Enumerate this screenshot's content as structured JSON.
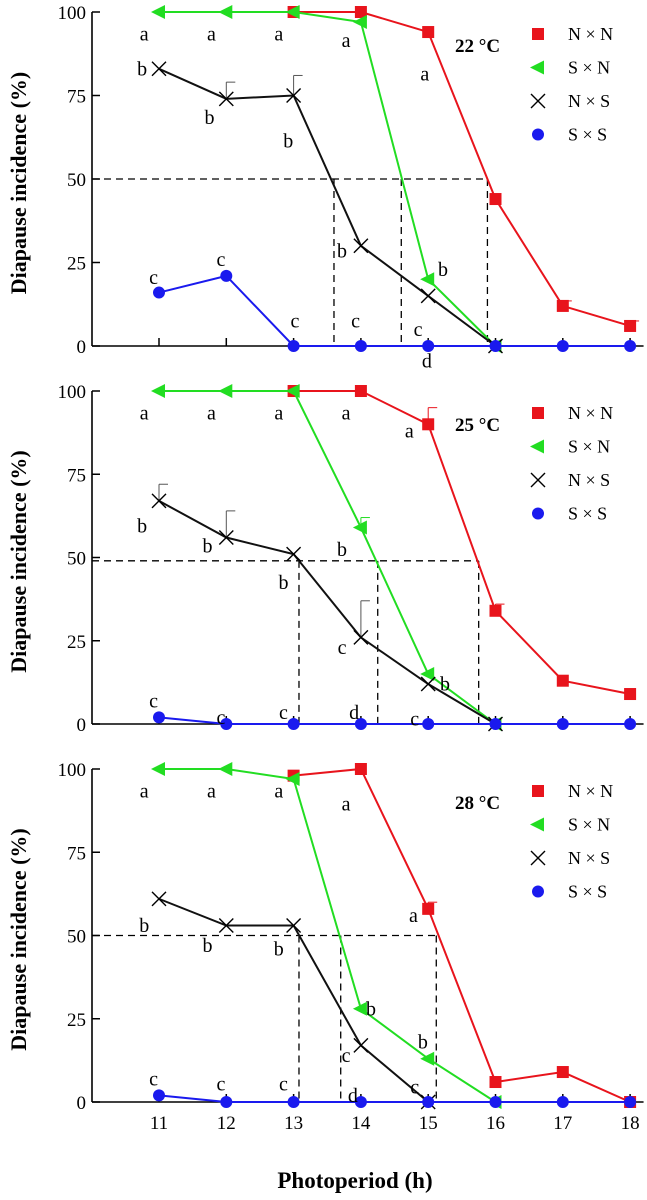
{
  "figure": {
    "xlabel": "Photoperiod (h)"
  },
  "chart_data": [
    {
      "type": "line",
      "title": "22 °C",
      "ylabel": "Diapause  incidence (%)",
      "xlabel": "Photoperiod (h)",
      "x": [
        11,
        12,
        13,
        14,
        15,
        16,
        17,
        18
      ],
      "xlim": [
        10,
        18.2
      ],
      "ylim": [
        0,
        100
      ],
      "yticks": [
        0,
        25,
        50,
        75,
        100
      ],
      "series": [
        {
          "name": "N × N",
          "color": "#e8141c",
          "marker": "square",
          "x": [
            13,
            14,
            15,
            16,
            17,
            18
          ],
          "values": [
            100,
            100,
            94,
            44,
            12,
            6
          ],
          "err": [
            0,
            0,
            0,
            0,
            1.5,
            1.5
          ]
        },
        {
          "name": "S × N",
          "color": "#22dd22",
          "marker": "triangle-left",
          "x": [
            11,
            12,
            13,
            14,
            15,
            16
          ],
          "values": [
            100,
            100,
            100,
            97,
            20,
            0
          ],
          "err": [
            0,
            0,
            0,
            0,
            0,
            0
          ]
        },
        {
          "name": "N × S",
          "color": "#000000",
          "marker": "x",
          "x": [
            11,
            12,
            13,
            14,
            15,
            16
          ],
          "values": [
            83,
            74,
            75,
            30,
            15,
            0
          ],
          "err": [
            0,
            5,
            6,
            0,
            0,
            0
          ]
        },
        {
          "name": "S × S",
          "color": "#1a1aee",
          "marker": "circle",
          "x": [
            11,
            12,
            13,
            14,
            15,
            16,
            17,
            18
          ],
          "values": [
            16,
            21,
            0,
            0,
            0,
            0,
            0,
            0
          ],
          "err": [
            0,
            0,
            0,
            0,
            0,
            0,
            0,
            0
          ]
        }
      ],
      "ref_level": 50,
      "ref_x": [
        13.6,
        14.6,
        15.88
      ],
      "letters": [
        {
          "text": "a",
          "x": 10.78,
          "y": 91.5
        },
        {
          "text": "a",
          "x": 11.78,
          "y": 91.5
        },
        {
          "text": "a",
          "x": 12.78,
          "y": 91.5
        },
        {
          "text": "a",
          "x": 13.78,
          "y": 89.5
        },
        {
          "text": "a",
          "x": 14.95,
          "y": 79.5
        },
        {
          "text": "b",
          "x": 10.75,
          "y": 81
        },
        {
          "text": "b",
          "x": 11.75,
          "y": 66.5
        },
        {
          "text": "b",
          "x": 12.92,
          "y": 59.5
        },
        {
          "text": "b",
          "x": 13.72,
          "y": 26.5
        },
        {
          "text": "b",
          "x": 15.22,
          "y": 21
        },
        {
          "text": "c",
          "x": 10.92,
          "y": 18.5
        },
        {
          "text": "c",
          "x": 11.92,
          "y": 24
        },
        {
          "text": "c",
          "x": 13.02,
          "y": 5.5
        },
        {
          "text": "c",
          "x": 13.92,
          "y": 5.5
        },
        {
          "text": "c",
          "x": 14.85,
          "y": 3
        },
        {
          "text": "d",
          "x": 14.98,
          "y": -6.5
        }
      ]
    },
    {
      "type": "line",
      "title": "25 °C",
      "ylabel": "Diapause  incidence (%)",
      "xlabel": "Photoperiod (h)",
      "x": [
        11,
        12,
        13,
        14,
        15,
        16,
        17,
        18
      ],
      "xlim": [
        10,
        18.2
      ],
      "ylim": [
        0,
        100
      ],
      "yticks": [
        0,
        25,
        50,
        75,
        100
      ],
      "series": [
        {
          "name": "N × N",
          "color": "#e8141c",
          "marker": "square",
          "x": [
            13,
            14,
            15,
            16,
            17,
            18
          ],
          "values": [
            100,
            100,
            90,
            34,
            13,
            9
          ],
          "err": [
            0,
            0,
            5,
            2,
            0,
            0
          ]
        },
        {
          "name": "S × N",
          "color": "#22dd22",
          "marker": "triangle-left",
          "x": [
            11,
            12,
            13,
            14,
            15,
            16
          ],
          "values": [
            100,
            100,
            100,
            59,
            15,
            0
          ],
          "err": [
            0,
            0,
            0,
            3,
            0,
            0
          ]
        },
        {
          "name": "N × S",
          "color": "#000000",
          "marker": "x",
          "x": [
            11,
            12,
            13,
            14,
            15,
            16
          ],
          "values": [
            67,
            56,
            51,
            26,
            12,
            0
          ],
          "err": [
            5,
            8,
            0,
            11,
            0,
            0
          ]
        },
        {
          "name": "S × S",
          "color": "#1a1aee",
          "marker": "circle",
          "x": [
            11,
            12,
            13,
            14,
            15,
            16,
            17,
            18
          ],
          "values": [
            2,
            0,
            0,
            0,
            0,
            0,
            0,
            0
          ],
          "err": [
            0,
            0,
            0,
            0,
            0,
            0,
            0,
            0
          ]
        }
      ],
      "ref_level": 49,
      "ref_x": [
        13.08,
        14.25,
        15.75
      ],
      "letters": [
        {
          "text": "a",
          "x": 10.78,
          "y": 91.5
        },
        {
          "text": "a",
          "x": 11.78,
          "y": 91.5
        },
        {
          "text": "a",
          "x": 12.78,
          "y": 91.5
        },
        {
          "text": "a",
          "x": 13.78,
          "y": 91.5
        },
        {
          "text": "a",
          "x": 14.72,
          "y": 86
        },
        {
          "text": "b",
          "x": 10.75,
          "y": 57.5
        },
        {
          "text": "b",
          "x": 11.72,
          "y": 51.5
        },
        {
          "text": "b",
          "x": 12.85,
          "y": 40.5
        },
        {
          "text": "b",
          "x": 13.72,
          "y": 50.5
        },
        {
          "text": "b",
          "x": 15.25,
          "y": 10
        },
        {
          "text": "c",
          "x": 10.92,
          "y": 5
        },
        {
          "text": "c",
          "x": 11.92,
          "y": 0
        },
        {
          "text": "c",
          "x": 12.85,
          "y": 1.5
        },
        {
          "text": "c",
          "x": 13.72,
          "y": 21
        },
        {
          "text": "c",
          "x": 14.8,
          "y": -0.5
        },
        {
          "text": "d",
          "x": 13.9,
          "y": 1.5
        }
      ]
    },
    {
      "type": "line",
      "title": "28 °C",
      "ylabel": "Diapause  incidence (%)",
      "xlabel": "Photoperiod (h)",
      "x": [
        11,
        12,
        13,
        14,
        15,
        16,
        17,
        18
      ],
      "xlim": [
        10,
        18.2
      ],
      "ylim": [
        0,
        100
      ],
      "yticks": [
        0,
        25,
        50,
        75,
        100
      ],
      "series": [
        {
          "name": "N × N",
          "color": "#e8141c",
          "marker": "square",
          "x": [
            13,
            14,
            15,
            16,
            17,
            18
          ],
          "values": [
            98,
            100,
            58,
            6,
            9,
            0
          ],
          "err": [
            0,
            0,
            2,
            0,
            0,
            0
          ]
        },
        {
          "name": "S × N",
          "color": "#22dd22",
          "marker": "triangle-left",
          "x": [
            11,
            12,
            13,
            14,
            15,
            16
          ],
          "values": [
            100,
            100,
            97,
            28,
            13,
            0
          ],
          "err": [
            0,
            0,
            0,
            0,
            0,
            0
          ]
        },
        {
          "name": "N × S",
          "color": "#000000",
          "marker": "x",
          "x": [
            11,
            12,
            13,
            14,
            15
          ],
          "values": [
            61,
            53,
            53,
            17,
            0
          ],
          "err": [
            0,
            0,
            0,
            0,
            0
          ]
        },
        {
          "name": "S × S",
          "color": "#1a1aee",
          "marker": "circle",
          "x": [
            11,
            12,
            13,
            14,
            15,
            16,
            17,
            18
          ],
          "values": [
            2,
            0,
            0,
            0,
            0,
            0,
            0,
            0
          ],
          "err": [
            0,
            0,
            0,
            0,
            0,
            0,
            0,
            0
          ]
        }
      ],
      "ref_level": 50,
      "ref_x": [
        13.08,
        13.7,
        15.12
      ],
      "letters": [
        {
          "text": "a",
          "x": 10.78,
          "y": 91.5
        },
        {
          "text": "a",
          "x": 11.78,
          "y": 91.5
        },
        {
          "text": "a",
          "x": 12.78,
          "y": 91.5
        },
        {
          "text": "a",
          "x": 13.78,
          "y": 87.5
        },
        {
          "text": "a",
          "x": 14.78,
          "y": 54
        },
        {
          "text": "b",
          "x": 10.78,
          "y": 51
        },
        {
          "text": "b",
          "x": 11.72,
          "y": 45
        },
        {
          "text": "b",
          "x": 12.78,
          "y": 44
        },
        {
          "text": "b",
          "x": 14.15,
          "y": 26
        },
        {
          "text": "b",
          "x": 14.92,
          "y": 16
        },
        {
          "text": "c",
          "x": 10.92,
          "y": 5
        },
        {
          "text": "c",
          "x": 11.92,
          "y": 3.5
        },
        {
          "text": "c",
          "x": 12.85,
          "y": 3.5
        },
        {
          "text": "c",
          "x": 13.78,
          "y": 12
        },
        {
          "text": "c",
          "x": 14.8,
          "y": 2.5
        },
        {
          "text": "d",
          "x": 13.88,
          "y": 0
        }
      ]
    }
  ]
}
